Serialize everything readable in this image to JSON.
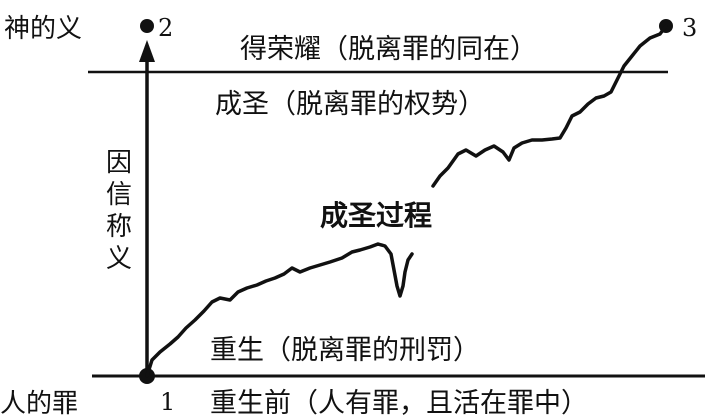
{
  "diagram": {
    "left_top": "神的义",
    "left_bottom": "人的罪",
    "axis_label": [
      "因",
      "信",
      "称",
      "义"
    ],
    "point_labels": {
      "p1": "1",
      "p2": "2",
      "p3": "3"
    },
    "levels": {
      "glory": "得荣耀（脱离罪的同在）",
      "sanctification_power": "成圣（脱离罪的权势）",
      "process": "成圣过程",
      "regeneration": "重生（脱离罪的刑罚）",
      "before_regeneration": "重生前（人有罪，且活在罪中）"
    }
  }
}
